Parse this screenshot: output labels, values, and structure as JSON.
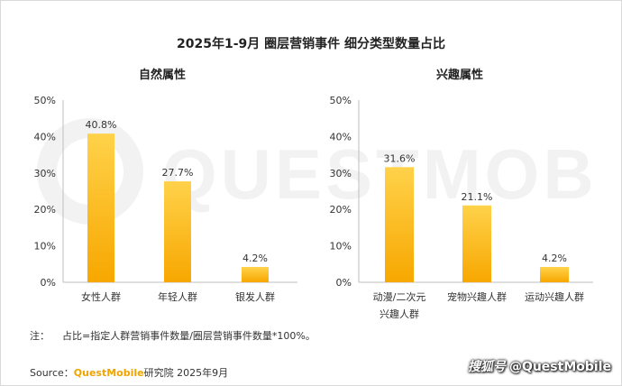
{
  "title": "2025年1-9月 圈层营销事件 细分类型数量占比",
  "watermark": "QUESTMOBILE",
  "colors": {
    "bar_top": "#ffd24a",
    "bar_bottom": "#f7a700",
    "axis": "#bfbfbf",
    "text": "#333333"
  },
  "chart_data": [
    {
      "type": "bar",
      "title": "自然属性",
      "categories": [
        "女性人群",
        "年轻人群",
        "银发人群"
      ],
      "values": [
        40.8,
        27.7,
        4.2
      ],
      "value_labels": [
        "40.8%",
        "27.7%",
        "4.2%"
      ],
      "ylim": [
        0,
        50
      ],
      "yticks": [
        "0%",
        "10%",
        "20%",
        "30%",
        "40%",
        "50%"
      ],
      "grid": false
    },
    {
      "type": "bar",
      "title": "兴趣属性",
      "categories": [
        "动漫/二次元兴趣人群",
        "宠物兴趣人群",
        "运动兴趣人群"
      ],
      "category_lines": [
        [
          "动漫/二次元",
          "兴趣人群"
        ],
        [
          "宠物兴趣人群"
        ],
        [
          "运动兴趣人群"
        ]
      ],
      "values": [
        31.6,
        21.1,
        4.2
      ],
      "value_labels": [
        "31.6%",
        "21.1%",
        "4.2%"
      ],
      "ylim": [
        0,
        50
      ],
      "yticks": [
        "0%",
        "10%",
        "20%",
        "30%",
        "40%",
        "50%"
      ],
      "grid": false
    }
  ],
  "note": {
    "prefix": "注：",
    "text": "占比=指定人群营销事件数量/圈层营销事件数量*100%。"
  },
  "source": {
    "label": "Source：",
    "brand": "QuestMobile",
    "rest": "研究院 2025年9月"
  },
  "badge": {
    "logo": "搜狐号",
    "handle": "@QuestMobile"
  }
}
